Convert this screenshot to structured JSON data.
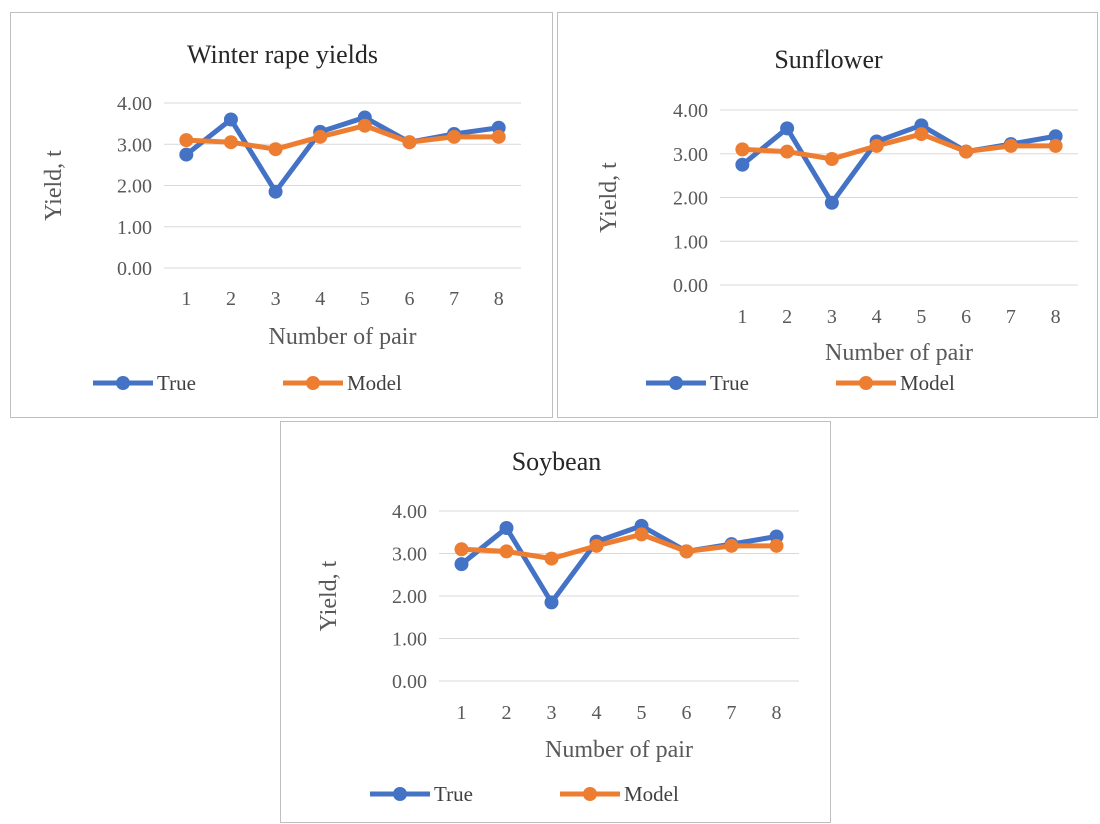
{
  "chart_data": [
    {
      "type": "line",
      "title": "Winter rape yields",
      "xlabel": "Number of pair",
      "ylabel": "Yield, t",
      "categories": [
        "1",
        "2",
        "3",
        "4",
        "5",
        "6",
        "7",
        "8"
      ],
      "ylim": [
        0,
        4
      ],
      "yticks": [
        "0.00",
        "1.00",
        "2.00",
        "3.00",
        "4.00"
      ],
      "grid": true,
      "legend": "bottom",
      "series": [
        {
          "name": "True",
          "color": "#4472C4",
          "values": [
            2.75,
            3.6,
            1.85,
            3.3,
            3.65,
            3.05,
            3.25,
            3.4
          ]
        },
        {
          "name": "Model",
          "color": "#ED7D31",
          "values": [
            3.1,
            3.05,
            2.88,
            3.18,
            3.45,
            3.05,
            3.18,
            3.18
          ]
        }
      ]
    },
    {
      "type": "line",
      "title": "Sunflower",
      "xlabel": "Number of pair",
      "ylabel": "Yield, t",
      "categories": [
        "1",
        "2",
        "3",
        "4",
        "5",
        "6",
        "7",
        "8"
      ],
      "ylim": [
        0,
        4
      ],
      "yticks": [
        "0.00",
        "1.00",
        "2.00",
        "3.00",
        "4.00"
      ],
      "grid": true,
      "legend": "bottom",
      "series": [
        {
          "name": "True",
          "color": "#4472C4",
          "values": [
            2.75,
            3.58,
            1.88,
            3.28,
            3.65,
            3.05,
            3.22,
            3.4
          ]
        },
        {
          "name": "Model",
          "color": "#ED7D31",
          "values": [
            3.1,
            3.05,
            2.88,
            3.18,
            3.45,
            3.05,
            3.18,
            3.18
          ]
        }
      ]
    },
    {
      "type": "line",
      "title": "Soybean",
      "xlabel": "Number of pair",
      "ylabel": "Yield, t",
      "categories": [
        "1",
        "2",
        "3",
        "4",
        "5",
        "6",
        "7",
        "8"
      ],
      "ylim": [
        0,
        4
      ],
      "yticks": [
        "0.00",
        "1.00",
        "2.00",
        "3.00",
        "4.00"
      ],
      "grid": true,
      "legend": "bottom",
      "series": [
        {
          "name": "True",
          "color": "#4472C4",
          "values": [
            2.75,
            3.6,
            1.85,
            3.28,
            3.65,
            3.05,
            3.22,
            3.4
          ]
        },
        {
          "name": "Model",
          "color": "#ED7D31",
          "values": [
            3.1,
            3.05,
            2.88,
            3.18,
            3.45,
            3.05,
            3.18,
            3.18
          ]
        }
      ]
    }
  ]
}
